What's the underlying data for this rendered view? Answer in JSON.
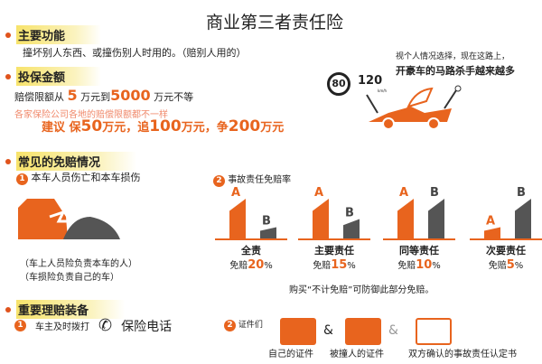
{
  "title": "商业第三者责任险",
  "accent": "#e8641e",
  "section1": {
    "label": "主要功能",
    "text": "撞坏别人东西、或撞伤别人时用的。（赔别人用的）"
  },
  "section2": {
    "label": "投保金额",
    "line1_prefix": "赔偿限额从",
    "line1_min": "5",
    "line1_mid": "万元到",
    "line1_max": "5000",
    "line1_suffix": "万元不等",
    "line2": "各家保险公司各地的赔偿限额都不一样",
    "rec_prefix": "建议 保",
    "rec_a": "50",
    "rec_unit_a": "万元，追",
    "rec_b": "100",
    "rec_unit_b": "万元，争",
    "rec_c": "200",
    "rec_unit_c": "万元"
  },
  "car_illustration": {
    "speed_sign": "80",
    "speed_text": "120",
    "speed_unit": "km/h",
    "note1": "视个人情况选择，现在这路上，",
    "note2": "开豪车的马路杀手越来越多"
  },
  "section3": {
    "label": "常见的免赔情况",
    "item1_num": "1",
    "item1": "本车人员伤亡和本车损伤",
    "note1": "（车上人员险负责本车的人）",
    "note2": "（车损险负责自己的车）",
    "item2_num": "2",
    "item2": "事故责任免赔率",
    "groups": [
      {
        "name": "全责",
        "rate_prefix": "免赔",
        "rate": "20",
        "unit": "%",
        "a_label": "A",
        "b_label": "B",
        "a_level": 1.0,
        "b_level": 0.3
      },
      {
        "name": "主要责任",
        "rate_prefix": "免赔",
        "rate": "15",
        "unit": "%",
        "a_label": "A",
        "b_label": "B",
        "a_level": 1.0,
        "b_level": 0.5
      },
      {
        "name": "同等责任",
        "rate_prefix": "免赔",
        "rate": "10",
        "unit": "%",
        "a_label": "A",
        "b_label": "B",
        "a_level": 1.0,
        "b_level": 1.0
      },
      {
        "name": "次要责任",
        "rate_prefix": "免赔",
        "rate": "5",
        "unit": "%",
        "a_label": "A",
        "b_label": "B",
        "a_level": 0.3,
        "b_level": 1.0
      }
    ],
    "footnote": "购买“不计免赔”可防御此部分免赔。"
  },
  "section4": {
    "label": "重要理赔装备",
    "item1_num": "1",
    "item1": "车主及时拨打",
    "phone": "保险电话",
    "item2_num": "2",
    "item2": "证件们",
    "amp": "&",
    "docs": [
      "自己的证件",
      "被撞人的证件",
      "双方确认的事故责任认定书"
    ]
  }
}
